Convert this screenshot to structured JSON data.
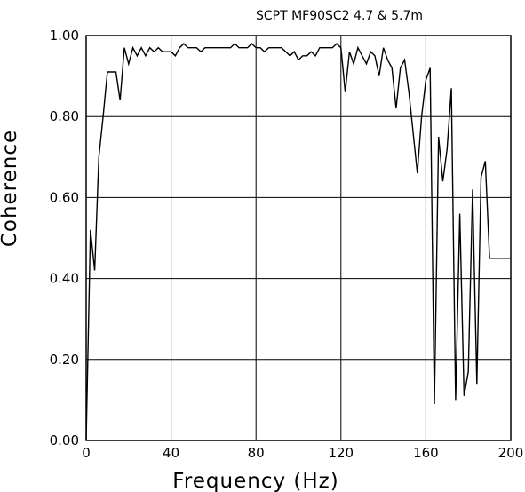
{
  "chart_data": {
    "type": "line",
    "title": "SCPT MF90SC2 4.7 & 5.7m",
    "xlabel": "Frequency (Hz)",
    "ylabel": "Coherence",
    "xlim": [
      0,
      200
    ],
    "ylim": [
      0,
      1
    ],
    "grid": true,
    "x_ticks": [
      "0",
      "40",
      "80",
      "120",
      "160",
      "200"
    ],
    "y_ticks": [
      "0.00",
      "0.20",
      "0.40",
      "0.60",
      "0.80",
      "1.00"
    ],
    "series": [
      {
        "x": [
          0,
          2,
          4,
          6,
          8,
          10,
          12,
          14,
          16,
          18,
          20,
          22,
          24,
          26,
          28,
          30,
          32,
          34,
          36,
          38,
          40,
          42,
          44,
          46,
          48,
          50,
          52,
          54,
          56,
          58,
          60,
          62,
          64,
          66,
          68,
          70,
          72,
          74,
          76,
          78,
          80,
          82,
          84,
          86,
          88,
          90,
          92,
          94,
          96,
          98,
          100,
          102,
          104,
          106,
          108,
          110,
          112,
          114,
          116,
          118,
          120,
          122,
          124,
          126,
          128,
          130,
          132,
          134,
          136,
          138,
          140,
          142,
          144,
          146,
          148,
          150,
          152,
          154,
          156,
          158,
          160,
          162,
          164,
          166,
          168,
          170,
          172,
          174,
          176,
          178,
          180,
          182,
          184,
          186,
          188,
          190,
          192,
          194,
          196,
          198,
          200
        ],
        "y": [
          0.0,
          0.52,
          0.42,
          0.7,
          0.8,
          0.91,
          0.91,
          0.91,
          0.84,
          0.97,
          0.93,
          0.97,
          0.95,
          0.97,
          0.95,
          0.97,
          0.96,
          0.97,
          0.96,
          0.96,
          0.96,
          0.95,
          0.97,
          0.98,
          0.97,
          0.97,
          0.97,
          0.96,
          0.97,
          0.97,
          0.97,
          0.97,
          0.97,
          0.97,
          0.97,
          0.98,
          0.97,
          0.97,
          0.97,
          0.98,
          0.97,
          0.97,
          0.96,
          0.97,
          0.97,
          0.97,
          0.97,
          0.96,
          0.95,
          0.96,
          0.94,
          0.95,
          0.95,
          0.96,
          0.95,
          0.97,
          0.97,
          0.97,
          0.97,
          0.98,
          0.97,
          0.86,
          0.96,
          0.93,
          0.97,
          0.95,
          0.93,
          0.96,
          0.95,
          0.9,
          0.97,
          0.94,
          0.92,
          0.82,
          0.92,
          0.94,
          0.86,
          0.76,
          0.66,
          0.8,
          0.89,
          0.92,
          0.09,
          0.75,
          0.64,
          0.72,
          0.87,
          0.1,
          0.56,
          0.11,
          0.17,
          0.62,
          0.14,
          0.65,
          0.69,
          0.45,
          0.45,
          0.45,
          0.45,
          0.45,
          0.45
        ]
      }
    ]
  }
}
